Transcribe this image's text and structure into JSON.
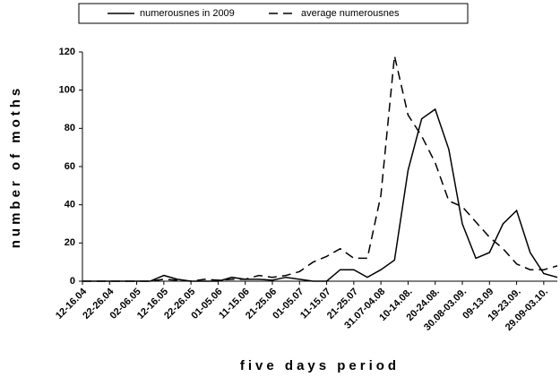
{
  "chart_data": {
    "type": "line",
    "categories": [
      "12-16.04",
      null,
      "22-26.04",
      null,
      "02-06.05",
      null,
      "12-16.05",
      null,
      "22-26.05",
      null,
      "01-05.06",
      null,
      "11-15.06",
      null,
      "21-25.06",
      null,
      "01-05.07",
      null,
      "11-15.07",
      null,
      "21-25.07",
      null,
      "31.07-04.08",
      null,
      "10-14.08.",
      null,
      "20-24.08.",
      null,
      "30.08-03.09.",
      null,
      "09-13.09",
      null,
      "19-23.09.",
      null,
      "29.09-03.10.",
      null
    ],
    "series": [
      {
        "name": "numerousnes in 2009",
        "color": "#000000",
        "dash": "solid",
        "values": [
          0,
          0,
          0,
          0,
          0,
          0,
          3,
          1,
          0,
          0,
          0,
          2,
          1,
          1,
          0.5,
          2,
          1,
          0,
          0,
          6,
          6,
          2,
          6,
          11,
          58,
          85,
          90,
          69,
          30,
          12,
          15,
          30,
          37,
          15,
          4,
          2
        ]
      },
      {
        "name": "average numerousnes",
        "color": "#000000",
        "dash": "dashed",
        "values": [
          0,
          0,
          0,
          0,
          0,
          0,
          1,
          0.5,
          0,
          1,
          0.5,
          1,
          1,
          3,
          2,
          3,
          5,
          10,
          13,
          17,
          12,
          12,
          45,
          118,
          87,
          76,
          62,
          42,
          39,
          31,
          23,
          17,
          9,
          6,
          6,
          8
        ]
      }
    ],
    "x_label": "five days period",
    "y_label": "number of moths",
    "ylim": [
      0,
      120
    ],
    "yticks": [
      0,
      20,
      40,
      60,
      80,
      100,
      120
    ],
    "grid": false,
    "legend": "top"
  }
}
